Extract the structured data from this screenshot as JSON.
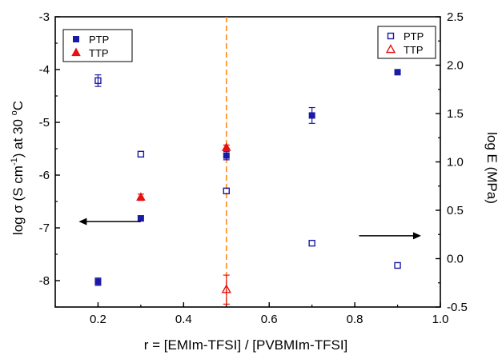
{
  "chart_data": {
    "type": "scatter",
    "title": "",
    "xlabel": "r = [EMIm-TFSI] / [PVBMIm-TFSI]",
    "ylabel_left": "log σ (S cm⁻¹) at 30 °C",
    "ylabel_right": "log E (MPa)",
    "xlim": [
      0.1,
      1.0
    ],
    "ylim_left": [
      -8.5,
      -3
    ],
    "ylim_right": [
      -0.5,
      2.5
    ],
    "x_ticks": [
      0.2,
      0.4,
      0.6,
      0.8,
      1.0
    ],
    "x_tick_labels": [
      "0.2",
      "0.4",
      "0.6",
      "0.8",
      "1.0"
    ],
    "y_left_ticks": [
      -3,
      -4,
      -5,
      -6,
      -7,
      -8
    ],
    "y_left_tick_labels": [
      "-3",
      "-4",
      "-5",
      "-6",
      "-7",
      "-8"
    ],
    "y_right_ticks": [
      2.5,
      2.0,
      1.5,
      1.0,
      0.5,
      0.0,
      -0.5
    ],
    "y_right_tick_labels": [
      "2.5",
      "2.0",
      "1.5",
      "1.0",
      "0.5",
      "0.0",
      "-0.5"
    ],
    "vertical_line_x": 0.5,
    "legend_left": {
      "placement": "top-left",
      "entries": [
        "PTP",
        "TTP"
      ]
    },
    "legend_right": {
      "placement": "top-right",
      "entries": [
        "PTP",
        "TTP"
      ]
    },
    "series": [
      {
        "name": "PTP",
        "axis": "left",
        "marker": "square-filled",
        "color": "#1a1aa6",
        "points": [
          {
            "x": 0.2,
            "y": -8.02,
            "err": 0.07
          },
          {
            "x": 0.3,
            "y": -6.82,
            "err": 0.05
          },
          {
            "x": 0.5,
            "y": -5.63,
            "err": 0.08
          },
          {
            "x": 0.7,
            "y": -4.87,
            "err": 0.15
          },
          {
            "x": 0.9,
            "y": -4.05,
            "err": 0
          }
        ]
      },
      {
        "name": "TTP",
        "axis": "left",
        "marker": "triangle-filled",
        "color": "#e81010",
        "points": [
          {
            "x": 0.3,
            "y": -6.42,
            "err": 0.06
          },
          {
            "x": 0.5,
            "y": -5.48,
            "err": 0.05
          }
        ]
      },
      {
        "name": "PTP",
        "axis": "right",
        "marker": "square-open",
        "color": "#1a1aa6",
        "points": [
          {
            "x": 0.2,
            "y": 1.84,
            "err": 0.06
          },
          {
            "x": 0.3,
            "y": 1.08,
            "err": 0
          },
          {
            "x": 0.5,
            "y": 0.7,
            "err": 0
          },
          {
            "x": 0.7,
            "y": 0.16,
            "err": 0
          },
          {
            "x": 0.9,
            "y": -0.07,
            "err": 0
          }
        ]
      },
      {
        "name": "TTP",
        "axis": "right",
        "marker": "triangle-open",
        "color": "#e81010",
        "points": [
          {
            "x": 0.5,
            "y": -0.32,
            "err": 0.15
          }
        ]
      }
    ],
    "annotations": [
      {
        "type": "arrow",
        "direction": "left",
        "points_to_axis": "left",
        "x_from": 0.3,
        "x_to": 0.155,
        "y_left": -6.88
      },
      {
        "type": "arrow",
        "direction": "right",
        "points_to_axis": "right",
        "x_from": 0.81,
        "x_to": 0.955,
        "y_left": -7.15
      }
    ],
    "colors": {
      "vertical_line": "#ff8c1a",
      "ptp": "#1a1aa6",
      "ttp": "#e81010",
      "axis": "#000000"
    }
  }
}
